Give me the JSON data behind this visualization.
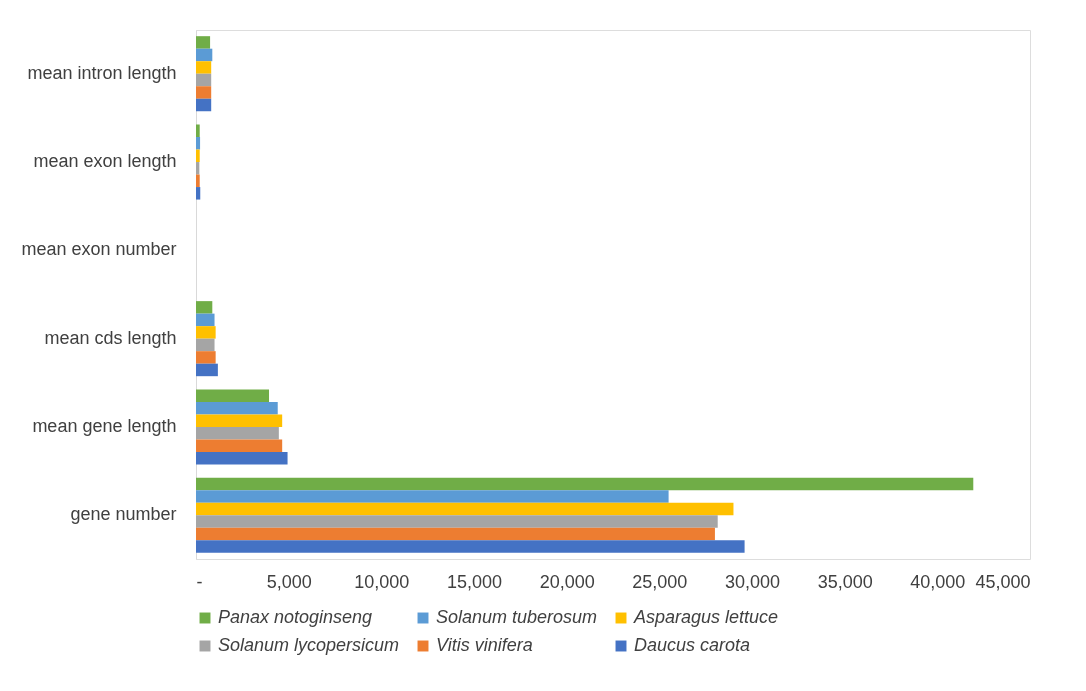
{
  "chart_data": {
    "type": "bar",
    "orientation": "horizontal",
    "categories": [
      "mean intron length",
      "mean exon length",
      "mean exon number",
      "mean cds length",
      "mean gene length",
      "gene number"
    ],
    "series": [
      {
        "name": "Panax notoginseng",
        "color": "#70ad47",
        "values": [
          760,
          200,
          0,
          880,
          3940,
          41940
        ]
      },
      {
        "name": "Solanum tuberosum",
        "color": "#5b9bd5",
        "values": [
          880,
          220,
          0,
          1000,
          4410,
          25500
        ]
      },
      {
        "name": "Asparagus lettuce",
        "color": "#ffc000",
        "values": [
          820,
          200,
          0,
          1060,
          4650,
          29000
        ]
      },
      {
        "name": "Solanum lycopersicum",
        "color": "#a5a5a5",
        "values": [
          820,
          180,
          0,
          1000,
          4470,
          28150
        ]
      },
      {
        "name": "Vitis vinifera",
        "color": "#ed7d31",
        "values": [
          820,
          200,
          0,
          1060,
          4650,
          28000
        ]
      },
      {
        "name": "Daucus carota",
        "color": "#4472c4",
        "values": [
          820,
          230,
          0,
          1180,
          4940,
          29600
        ]
      }
    ],
    "xlim": [
      0,
      45000
    ],
    "xticks": [
      {
        "value": 0,
        "label": "-"
      },
      {
        "value": 5000,
        "label": "5,000"
      },
      {
        "value": 10000,
        "label": "10,000"
      },
      {
        "value": 15000,
        "label": "15,000"
      },
      {
        "value": 20000,
        "label": "20,000"
      },
      {
        "value": 25000,
        "label": "25,000"
      },
      {
        "value": 30000,
        "label": "30,000"
      },
      {
        "value": 35000,
        "label": "35,000"
      },
      {
        "value": 40000,
        "label": "40,000"
      },
      {
        "value": 45000,
        "label": "45,000"
      }
    ],
    "grid": false,
    "legend": "bottom"
  }
}
